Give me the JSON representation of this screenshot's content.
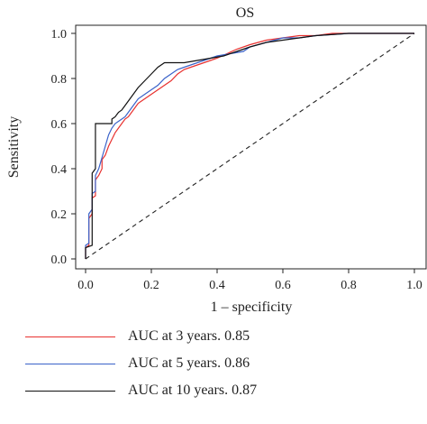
{
  "chart_data": {
    "type": "line",
    "title": "OS",
    "xlabel": "1 – specificity",
    "ylabel": "Sensitivity",
    "xlim": [
      0,
      1
    ],
    "ylim": [
      0,
      1
    ],
    "xticks": [
      "0.0",
      "0.2",
      "0.4",
      "0.6",
      "0.8",
      "1.0"
    ],
    "yticks": [
      "0.0",
      "0.2",
      "0.4",
      "0.6",
      "0.8",
      "1.0"
    ],
    "grid": false,
    "legend_position": "bottom",
    "reference_line": {
      "style": "dashed",
      "x": [
        0,
        1
      ],
      "y": [
        0,
        1
      ]
    },
    "series": [
      {
        "name": "AUC at 3 years. 0.85",
        "color": "#e8312f",
        "x": [
          0.0,
          0.0,
          0.01,
          0.01,
          0.02,
          0.02,
          0.03,
          0.03,
          0.04,
          0.05,
          0.05,
          0.06,
          0.07,
          0.08,
          0.09,
          0.1,
          0.11,
          0.12,
          0.13,
          0.14,
          0.15,
          0.16,
          0.17,
          0.18,
          0.19,
          0.2,
          0.22,
          0.24,
          0.26,
          0.28,
          0.3,
          0.32,
          0.34,
          0.36,
          0.38,
          0.4,
          0.43,
          0.46,
          0.5,
          0.55,
          0.6,
          0.65,
          0.7,
          0.75,
          0.8,
          0.9,
          1.0
        ],
        "y": [
          0.0,
          0.05,
          0.06,
          0.18,
          0.2,
          0.27,
          0.28,
          0.35,
          0.37,
          0.4,
          0.44,
          0.46,
          0.5,
          0.53,
          0.56,
          0.58,
          0.6,
          0.62,
          0.63,
          0.65,
          0.67,
          0.69,
          0.7,
          0.71,
          0.72,
          0.73,
          0.75,
          0.77,
          0.79,
          0.82,
          0.84,
          0.85,
          0.86,
          0.87,
          0.88,
          0.89,
          0.91,
          0.93,
          0.95,
          0.97,
          0.98,
          0.99,
          0.99,
          1.0,
          1.0,
          1.0,
          1.0
        ]
      },
      {
        "name": "AUC at 5 years. 0.86",
        "color": "#3a62c9",
        "x": [
          0.0,
          0.0,
          0.01,
          0.01,
          0.02,
          0.02,
          0.03,
          0.03,
          0.04,
          0.05,
          0.06,
          0.07,
          0.08,
          0.09,
          0.1,
          0.11,
          0.12,
          0.13,
          0.14,
          0.15,
          0.16,
          0.18,
          0.2,
          0.22,
          0.24,
          0.26,
          0.28,
          0.3,
          0.32,
          0.34,
          0.36,
          0.4,
          0.44,
          0.48,
          0.5,
          0.55,
          0.6,
          0.65,
          0.7,
          0.8,
          0.9,
          1.0
        ],
        "y": [
          0.0,
          0.06,
          0.07,
          0.2,
          0.22,
          0.29,
          0.3,
          0.37,
          0.4,
          0.45,
          0.5,
          0.55,
          0.58,
          0.6,
          0.61,
          0.62,
          0.63,
          0.65,
          0.67,
          0.69,
          0.71,
          0.73,
          0.75,
          0.77,
          0.8,
          0.82,
          0.84,
          0.85,
          0.86,
          0.87,
          0.88,
          0.9,
          0.91,
          0.92,
          0.94,
          0.96,
          0.98,
          0.98,
          0.99,
          1.0,
          1.0,
          1.0
        ]
      },
      {
        "name": "AUC at 10 years. 0.87",
        "color": "#111111",
        "x": [
          0.0,
          0.0,
          0.02,
          0.02,
          0.03,
          0.03,
          0.08,
          0.08,
          0.09,
          0.1,
          0.11,
          0.12,
          0.14,
          0.16,
          0.18,
          0.2,
          0.22,
          0.24,
          0.26,
          0.28,
          0.3,
          0.34,
          0.38,
          0.42,
          0.46,
          0.5,
          0.55,
          0.6,
          0.65,
          0.7,
          0.8,
          0.9,
          1.0
        ],
        "y": [
          0.0,
          0.05,
          0.06,
          0.38,
          0.4,
          0.6,
          0.6,
          0.62,
          0.63,
          0.65,
          0.66,
          0.68,
          0.72,
          0.76,
          0.79,
          0.82,
          0.85,
          0.87,
          0.87,
          0.87,
          0.87,
          0.88,
          0.89,
          0.9,
          0.92,
          0.94,
          0.96,
          0.97,
          0.98,
          0.99,
          1.0,
          1.0,
          1.0
        ]
      }
    ]
  }
}
